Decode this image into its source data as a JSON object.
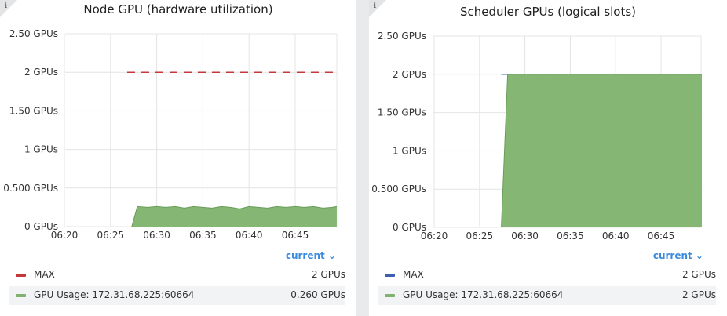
{
  "panels": [
    {
      "title": "Node GPU (hardware utilization)",
      "legend_header": "current ⌄",
      "legend": [
        {
          "name": "MAX",
          "value": "2 GPUs",
          "color": "#c4383a"
        },
        {
          "name": "GPU Usage: 172.31.68.225:60664",
          "value": "0.260 GPUs",
          "color": "#7eb26d"
        }
      ]
    },
    {
      "title": "Scheduler GPUs (logical slots)",
      "legend_header": "current ⌄",
      "legend": [
        {
          "name": "MAX",
          "value": "2 GPUs",
          "color": "#3d5fb0"
        },
        {
          "name": "GPU Usage: 172.31.68.225:60664",
          "value": "2 GPUs",
          "color": "#7eb26d"
        }
      ]
    }
  ],
  "chart_data": [
    {
      "type": "area",
      "title": "Node GPU (hardware utilization)",
      "x_tick_labels": [
        "06:20",
        "06:25",
        "06:30",
        "06:35",
        "06:40",
        "06:45"
      ],
      "y_tick_labels": [
        "0 GPUs",
        "0.500 GPUs",
        "1 GPUs",
        "1.50 GPUs",
        "2 GPUs",
        "2.50 GPUs"
      ],
      "ylim": [
        0,
        2.5
      ],
      "xlim_minutes": [
        0,
        29.5
      ],
      "grid": true,
      "series": [
        {
          "name": "MAX",
          "style": "dashed-line",
          "color": "#c4383a",
          "x": [
            6.8,
            29.5
          ],
          "y": [
            2,
            2
          ]
        },
        {
          "name": "GPU Usage: 172.31.68.225:60664",
          "style": "filled-area",
          "color": "#7eb26d",
          "x": [
            7.3,
            7.9,
            9,
            10,
            11,
            12,
            13,
            14,
            15,
            16,
            17,
            18,
            19,
            20,
            21,
            22,
            23,
            24,
            25,
            26,
            27,
            28,
            29,
            29.5
          ],
          "y": [
            0,
            0.26,
            0.25,
            0.26,
            0.25,
            0.26,
            0.24,
            0.26,
            0.25,
            0.24,
            0.26,
            0.25,
            0.23,
            0.26,
            0.25,
            0.24,
            0.26,
            0.25,
            0.26,
            0.25,
            0.26,
            0.24,
            0.25,
            0.26
          ]
        }
      ]
    },
    {
      "type": "area",
      "title": "Scheduler GPUs (logical slots)",
      "x_tick_labels": [
        "06:20",
        "06:25",
        "06:30",
        "06:35",
        "06:40",
        "06:45"
      ],
      "y_tick_labels": [
        "0 GPUs",
        "0.500 GPUs",
        "1 GPUs",
        "1.50 GPUs",
        "2 GPUs",
        "2.50 GPUs"
      ],
      "ylim": [
        0,
        2.5
      ],
      "xlim_minutes": [
        0,
        29.5
      ],
      "grid": true,
      "series": [
        {
          "name": "MAX",
          "style": "dashed-line",
          "color": "#3d5fb0",
          "x": [
            7.4,
            29.5
          ],
          "y": [
            2,
            2
          ]
        },
        {
          "name": "GPU Usage: 172.31.68.225:60664",
          "style": "filled-area",
          "color": "#7eb26d",
          "x": [
            7.4,
            8.1,
            29.5
          ],
          "y": [
            0,
            2,
            2
          ]
        }
      ]
    }
  ]
}
